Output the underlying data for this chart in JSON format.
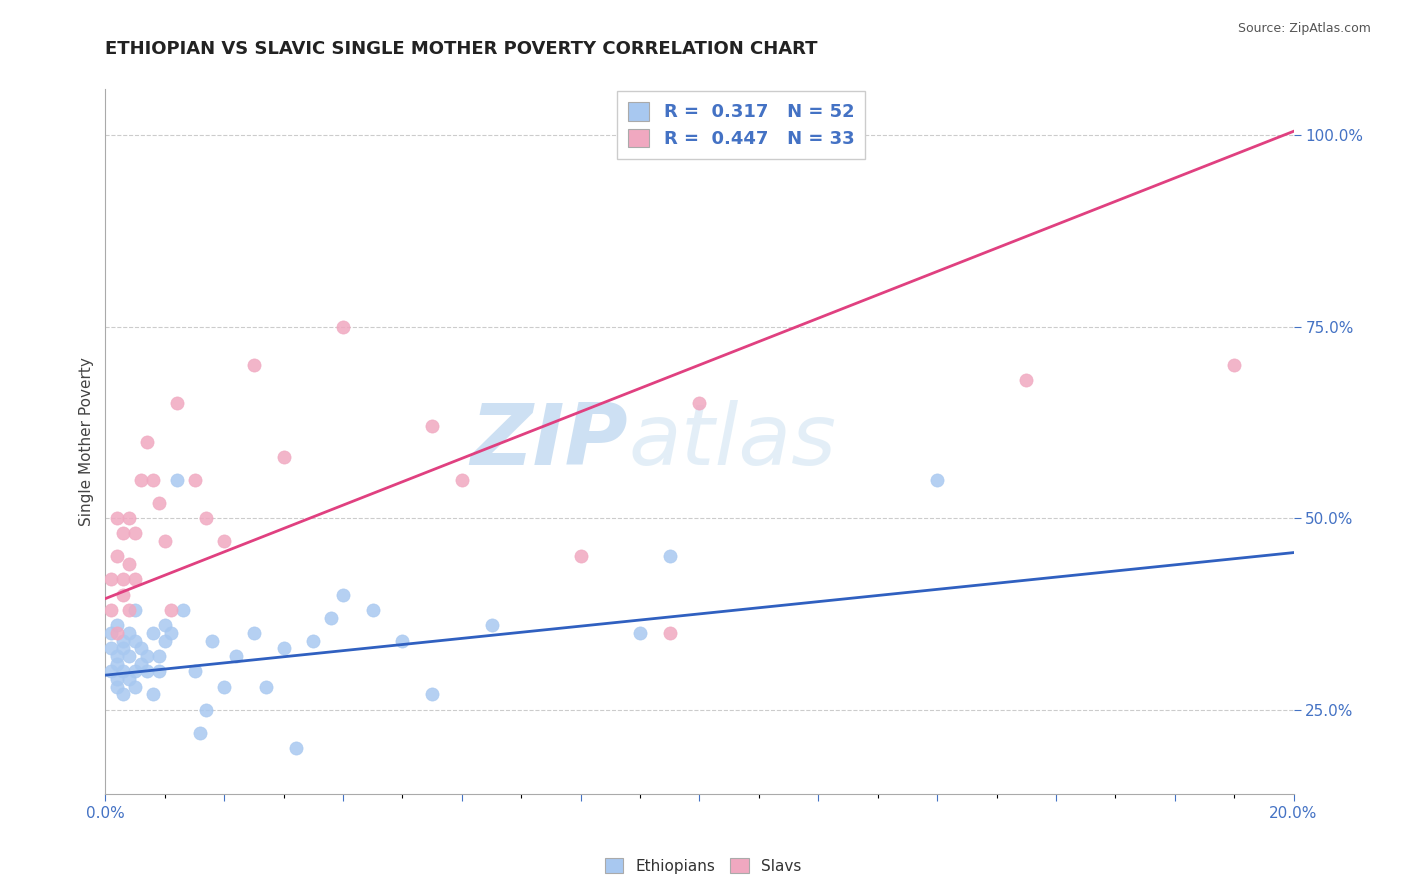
{
  "title": "ETHIOPIAN VS SLAVIC SINGLE MOTHER POVERTY CORRELATION CHART",
  "source": "Source: ZipAtlas.com",
  "ylabel": "Single Mother Poverty",
  "right_yticks": [
    25.0,
    50.0,
    75.0,
    100.0
  ],
  "watermark_zip": "ZIP",
  "watermark_atlas": "atlas",
  "blue_color": "#A8C8F0",
  "pink_color": "#F0A8C0",
  "blue_line_color": "#3060C0",
  "pink_line_color": "#E04080",
  "text_color": "#4472C4",
  "legend_r_blue": "0.317",
  "legend_n_blue": "52",
  "legend_r_pink": "0.447",
  "legend_n_pink": "33",
  "ethiopians_x": [
    0.001,
    0.001,
    0.001,
    0.002,
    0.002,
    0.002,
    0.002,
    0.002,
    0.003,
    0.003,
    0.003,
    0.003,
    0.004,
    0.004,
    0.004,
    0.005,
    0.005,
    0.005,
    0.005,
    0.006,
    0.006,
    0.007,
    0.007,
    0.008,
    0.008,
    0.009,
    0.009,
    0.01,
    0.01,
    0.011,
    0.012,
    0.013,
    0.015,
    0.016,
    0.017,
    0.018,
    0.02,
    0.022,
    0.025,
    0.027,
    0.03,
    0.032,
    0.035,
    0.038,
    0.04,
    0.045,
    0.05,
    0.055,
    0.065,
    0.09,
    0.14,
    0.095
  ],
  "ethiopians_y": [
    0.33,
    0.3,
    0.35,
    0.28,
    0.32,
    0.36,
    0.31,
    0.29,
    0.3,
    0.33,
    0.27,
    0.34,
    0.32,
    0.35,
    0.29,
    0.3,
    0.28,
    0.34,
    0.38,
    0.31,
    0.33,
    0.3,
    0.32,
    0.35,
    0.27,
    0.3,
    0.32,
    0.34,
    0.36,
    0.35,
    0.55,
    0.38,
    0.3,
    0.22,
    0.25,
    0.34,
    0.28,
    0.32,
    0.35,
    0.28,
    0.33,
    0.2,
    0.34,
    0.37,
    0.4,
    0.38,
    0.34,
    0.27,
    0.36,
    0.35,
    0.55,
    0.45
  ],
  "slavs_x": [
    0.001,
    0.001,
    0.002,
    0.002,
    0.002,
    0.003,
    0.003,
    0.003,
    0.004,
    0.004,
    0.004,
    0.005,
    0.005,
    0.006,
    0.007,
    0.008,
    0.009,
    0.01,
    0.011,
    0.012,
    0.015,
    0.017,
    0.02,
    0.025,
    0.03,
    0.04,
    0.055,
    0.06,
    0.08,
    0.095,
    0.1,
    0.155,
    0.19
  ],
  "slavs_y": [
    0.38,
    0.42,
    0.45,
    0.5,
    0.35,
    0.42,
    0.48,
    0.4,
    0.44,
    0.38,
    0.5,
    0.42,
    0.48,
    0.55,
    0.6,
    0.55,
    0.52,
    0.47,
    0.38,
    0.65,
    0.55,
    0.5,
    0.47,
    0.7,
    0.58,
    0.75,
    0.62,
    0.55,
    0.45,
    0.35,
    0.65,
    0.68,
    0.7
  ],
  "xlim": [
    0.0,
    0.2
  ],
  "ylim": [
    0.14,
    1.06
  ],
  "background_color": "#FFFFFF",
  "grid_color": "#CCCCCC",
  "blue_line_x0": 0.0,
  "blue_line_y0": 0.295,
  "blue_line_x1": 0.2,
  "blue_line_y1": 0.455,
  "pink_line_x0": 0.0,
  "pink_line_y0": 0.395,
  "pink_line_x1": 0.2,
  "pink_line_y1": 1.005
}
